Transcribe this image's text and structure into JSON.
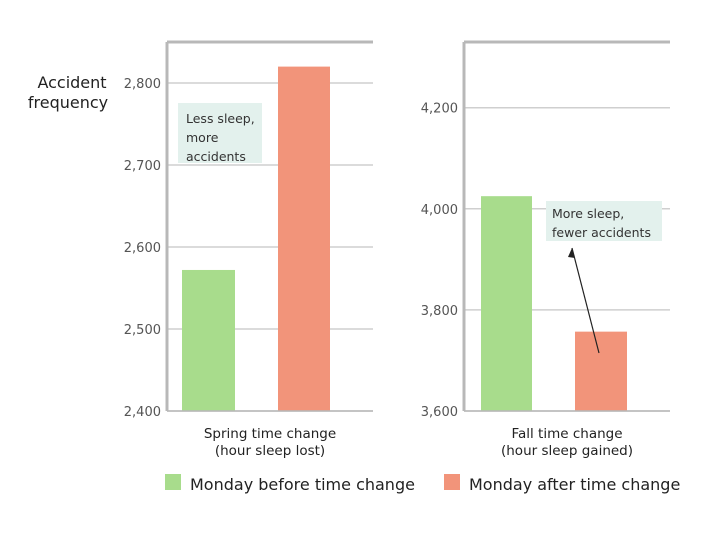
{
  "colors": {
    "before": "#a8dc8c",
    "after": "#f2947a",
    "grid": "#cfcfcf",
    "axis": "#b8b8b8",
    "annotation_bg": "#e3f1ed"
  },
  "y_axis_label": [
    "Accident",
    "frequency"
  ],
  "legend": [
    {
      "label": "Monday before time change",
      "color": "#a8dc8c"
    },
    {
      "label": "Monday after time change",
      "color": "#f2947a"
    }
  ],
  "chart_data": [
    {
      "type": "bar",
      "x_label": [
        "Spring time change",
        "(hour sleep lost)"
      ],
      "ylim": [
        2400,
        2850
      ],
      "yticks": [
        2400,
        2500,
        2600,
        2700,
        2800
      ],
      "ytick_labels": [
        "2,400",
        "2,500",
        "2,600",
        "2,700",
        "2,800"
      ],
      "series": [
        {
          "name": "Monday before time change",
          "value": 2572,
          "color": "#a8dc8c"
        },
        {
          "name": "Monday after time change",
          "value": 2820,
          "color": "#f2947a"
        }
      ],
      "annotation": [
        "Less sleep,",
        "more",
        "accidents"
      ]
    },
    {
      "type": "bar",
      "x_label": [
        "Fall time change",
        "(hour sleep gained)"
      ],
      "ylim": [
        3600,
        4330
      ],
      "yticks": [
        3600,
        3800,
        4000,
        4200
      ],
      "ytick_labels": [
        "3,600",
        "3,800",
        "4,000",
        "4,200"
      ],
      "series": [
        {
          "name": "Monday before time change",
          "value": 4025,
          "color": "#a8dc8c"
        },
        {
          "name": "Monday after time change",
          "value": 3757,
          "color": "#f2947a"
        }
      ],
      "annotation": [
        "More sleep,",
        "fewer accidents"
      ]
    }
  ]
}
